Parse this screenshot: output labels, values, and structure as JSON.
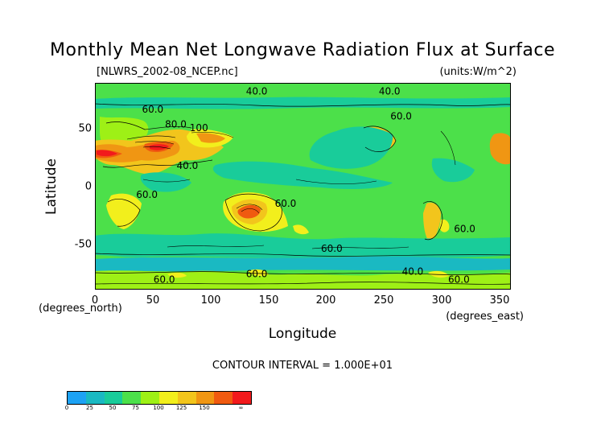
{
  "title": "Monthly Mean Net Longwave Radiation Flux at Surface",
  "source_file": "[NLWRS_2002-08_NCEP.nc]",
  "units": "(units:W/m^2)",
  "contour_text": "CONTOUR INTERVAL = 1.000E+01",
  "chart_data": {
    "type": "heatmap",
    "title": "Monthly Mean Net Longwave Radiation Flux at Surface",
    "xlabel": "Longitude",
    "ylabel": "Latitude",
    "x_unit_label": "(degrees_east)",
    "y_unit_label": "(degrees_north)",
    "xlim": [
      0,
      360
    ],
    "ylim": [
      -90,
      90
    ],
    "x_ticks": [
      0,
      50,
      100,
      150,
      200,
      250,
      300,
      350
    ],
    "y_ticks": [
      50,
      0,
      -50
    ],
    "contour_labels": [
      {
        "text": "40.0",
        "lon": 140,
        "lat": 80
      },
      {
        "text": "60.0",
        "lon": 50,
        "lat": 64
      },
      {
        "text": "80.0",
        "lon": 70,
        "lat": 51
      },
      {
        "text": "100",
        "lon": 90,
        "lat": 48
      },
      {
        "text": "40.0",
        "lon": 80,
        "lat": 15
      },
      {
        "text": "60.0",
        "lon": 45,
        "lat": -10
      },
      {
        "text": "60.0",
        "lon": 165,
        "lat": -18
      },
      {
        "text": "60.0",
        "lon": 205,
        "lat": -57
      },
      {
        "text": "60.0",
        "lon": 265,
        "lat": 58
      },
      {
        "text": "40.0",
        "lon": 255,
        "lat": 80
      },
      {
        "text": "60.0",
        "lon": 320,
        "lat": -40
      },
      {
        "text": "40.0",
        "lon": 275,
        "lat": -77
      },
      {
        "text": "60.0",
        "lon": 140,
        "lat": -79
      },
      {
        "text": "60.0",
        "lon": 60,
        "lat": -84
      },
      {
        "text": "60.0",
        "lon": 315,
        "lat": -84
      }
    ],
    "colorbar": {
      "colors": [
        "#1da2f4",
        "#1ab9c2",
        "#19cc9a",
        "#4ce04a",
        "#9ef016",
        "#f2ef1c",
        "#f2c51c",
        "#f09613",
        "#f05a10",
        "#f21a1c"
      ],
      "labels": [
        "0",
        "25",
        "50",
        "75",
        "100",
        "125",
        "150",
        "∞"
      ]
    }
  }
}
